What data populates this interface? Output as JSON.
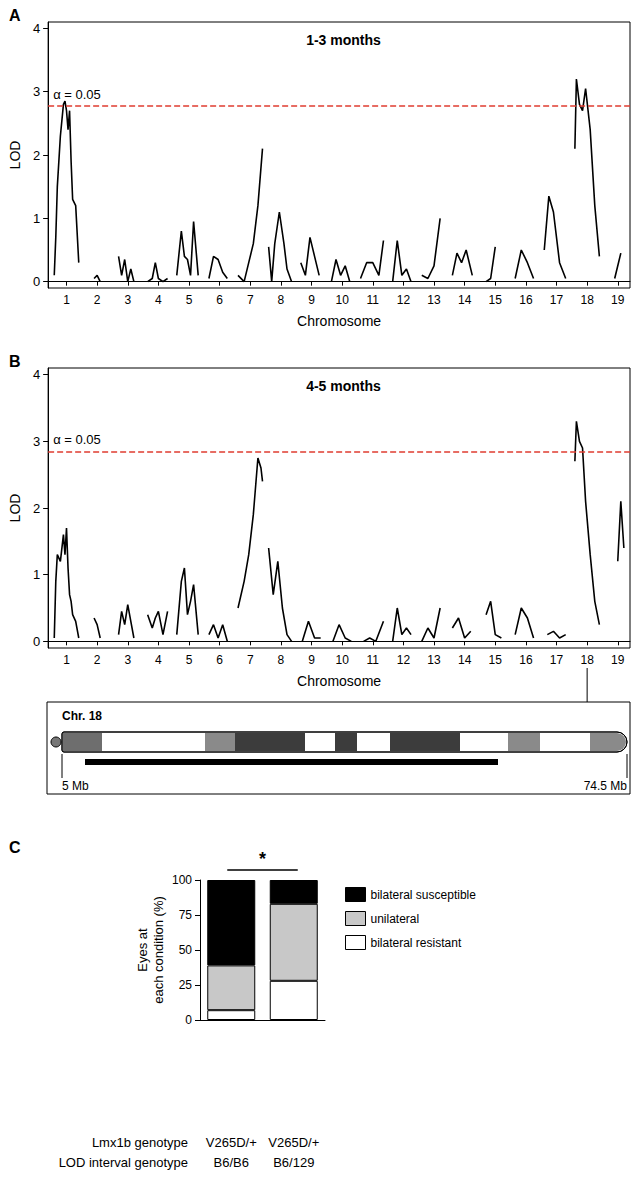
{
  "chart_data": [
    {
      "type": "line",
      "panel": "A",
      "title": "1-3 months",
      "x_label": "Chromosome",
      "y_label": "LOD",
      "color": "#000000",
      "grid": false,
      "xlim": [
        0.4,
        19.4
      ],
      "xticks": [
        1,
        2,
        3,
        4,
        5,
        6,
        7,
        8,
        9,
        10,
        11,
        12,
        13,
        14,
        15,
        16,
        17,
        18,
        19
      ],
      "ylim": [
        -0.1,
        4.1
      ],
      "yticks": [
        0,
        1,
        2,
        3,
        4
      ],
      "threshold": {
        "value": 2.78,
        "label": "α = 0.05",
        "color": "#e03c31",
        "line_style": "dashed"
      },
      "x": [
        0.6,
        0.65,
        0.7,
        0.8,
        0.9,
        0.95,
        1.0,
        1.05,
        1.1,
        1.15,
        1.2,
        1.3,
        1.4,
        1.5,
        1.9,
        2.0,
        2.1,
        2.5,
        2.7,
        2.8,
        2.9,
        3.0,
        3.1,
        3.2,
        3.5,
        3.65,
        3.8,
        3.9,
        4.0,
        4.15,
        4.3,
        4.5,
        4.6,
        4.75,
        4.85,
        4.95,
        5.05,
        5.15,
        5.3,
        5.5,
        5.65,
        5.8,
        5.95,
        6.1,
        6.25,
        6.5,
        6.6,
        6.8,
        6.95,
        7.1,
        7.25,
        7.4,
        7.5,
        7.6,
        7.7,
        7.8,
        7.95,
        8.1,
        8.2,
        8.35,
        8.5,
        8.65,
        8.8,
        8.95,
        9.1,
        9.25,
        9.5,
        9.65,
        9.8,
        9.95,
        10.1,
        10.25,
        10.5,
        10.6,
        10.8,
        11.0,
        11.2,
        11.35,
        11.5,
        11.65,
        11.8,
        11.95,
        12.1,
        12.25,
        12.5,
        12.6,
        12.8,
        13.0,
        13.2,
        13.5,
        13.6,
        13.75,
        13.9,
        14.05,
        14.25,
        14.5,
        14.7,
        14.85,
        15.0,
        15.5,
        15.65,
        15.85,
        16.05,
        16.25,
        16.5,
        16.6,
        16.75,
        16.9,
        17.1,
        17.3,
        17.5,
        17.6,
        17.65,
        17.75,
        17.85,
        17.95,
        18.1,
        18.25,
        18.4,
        18.5,
        18.9,
        19.1
      ],
      "values": [
        0.1,
        0.7,
        1.5,
        2.3,
        2.8,
        2.85,
        2.7,
        2.4,
        2.7,
        1.9,
        1.3,
        1.2,
        0.3,
        null,
        0.05,
        0.1,
        0.0,
        null,
        0.4,
        0.1,
        0.35,
        0.0,
        0.2,
        0.0,
        null,
        0.0,
        0.05,
        0.3,
        0.05,
        0.0,
        0.05,
        null,
        0.1,
        0.8,
        0.4,
        0.35,
        0.1,
        0.95,
        0.1,
        null,
        0.05,
        0.4,
        0.35,
        0.15,
        0.05,
        null,
        0.1,
        0.0,
        0.3,
        0.6,
        1.2,
        2.1,
        null,
        0.55,
        0.0,
        0.6,
        1.1,
        0.6,
        0.2,
        0.0,
        null,
        0.3,
        0.1,
        0.7,
        0.4,
        0.1,
        null,
        0.0,
        0.35,
        0.1,
        0.25,
        0.0,
        null,
        0.05,
        0.3,
        0.3,
        0.1,
        0.65,
        null,
        0.0,
        0.65,
        0.1,
        0.2,
        0.0,
        null,
        0.1,
        0.05,
        0.25,
        1.0,
        null,
        0.1,
        0.45,
        0.3,
        0.5,
        0.1,
        null,
        0.0,
        0.05,
        0.55,
        null,
        0.05,
        0.5,
        0.3,
        0.05,
        null,
        0.5,
        1.35,
        1.1,
        0.3,
        0.05,
        null,
        2.1,
        3.2,
        2.8,
        2.7,
        3.05,
        2.4,
        1.2,
        0.4,
        null,
        0.05,
        0.45
      ]
    },
    {
      "type": "line",
      "panel": "B",
      "title": "4-5 months",
      "x_label": "Chromosome",
      "y_label": "LOD",
      "color": "#000000",
      "grid": false,
      "xlim": [
        0.4,
        19.4
      ],
      "xticks": [
        1,
        2,
        3,
        4,
        5,
        6,
        7,
        8,
        9,
        10,
        11,
        12,
        13,
        14,
        15,
        16,
        17,
        18,
        19
      ],
      "ylim": [
        -0.1,
        4.1
      ],
      "yticks": [
        0,
        1,
        2,
        3,
        4
      ],
      "threshold": {
        "value": 2.85,
        "label": "α = 0.05",
        "color": "#e03c31",
        "line_style": "dashed"
      },
      "x": [
        0.6,
        0.65,
        0.7,
        0.8,
        0.9,
        0.95,
        1.0,
        1.05,
        1.1,
        1.15,
        1.2,
        1.3,
        1.4,
        1.5,
        1.9,
        2.0,
        2.1,
        2.5,
        2.7,
        2.8,
        2.9,
        3.0,
        3.1,
        3.2,
        3.5,
        3.65,
        3.8,
        3.9,
        4.0,
        4.15,
        4.3,
        4.5,
        4.6,
        4.75,
        4.85,
        4.95,
        5.05,
        5.15,
        5.3,
        5.5,
        5.65,
        5.8,
        5.95,
        6.1,
        6.25,
        6.5,
        6.6,
        6.8,
        6.95,
        7.1,
        7.25,
        7.35,
        7.4,
        7.5,
        7.6,
        7.75,
        7.9,
        8.05,
        8.2,
        8.35,
        8.5,
        8.7,
        8.9,
        9.1,
        9.3,
        9.5,
        9.7,
        9.9,
        10.1,
        10.3,
        10.5,
        10.7,
        10.9,
        11.1,
        11.35,
        11.5,
        11.65,
        11.8,
        11.95,
        12.1,
        12.25,
        12.5,
        12.6,
        12.8,
        13.0,
        13.2,
        13.5,
        13.6,
        13.8,
        14.0,
        14.2,
        14.5,
        14.7,
        14.85,
        15.0,
        15.2,
        15.5,
        15.65,
        15.85,
        16.05,
        16.25,
        16.5,
        16.7,
        16.9,
        17.1,
        17.3,
        17.5,
        17.6,
        17.65,
        17.75,
        17.85,
        17.95,
        18.1,
        18.25,
        18.4,
        18.5,
        19.0,
        19.1,
        19.2
      ],
      "values": [
        0.05,
        0.9,
        1.3,
        1.2,
        1.6,
        1.3,
        1.7,
        1.1,
        0.7,
        0.6,
        0.4,
        0.3,
        0.05,
        null,
        0.35,
        0.25,
        0.05,
        null,
        0.1,
        0.45,
        0.25,
        0.55,
        0.3,
        0.05,
        null,
        0.4,
        0.2,
        0.35,
        0.45,
        0.1,
        0.45,
        null,
        0.1,
        0.9,
        1.1,
        0.4,
        0.6,
        0.85,
        0.1,
        null,
        0.1,
        0.25,
        0.05,
        0.25,
        0.0,
        null,
        0.5,
        0.9,
        1.3,
        1.9,
        2.75,
        2.6,
        2.4,
        null,
        1.4,
        0.7,
        1.2,
        0.5,
        0.1,
        0.0,
        null,
        0.0,
        0.3,
        0.05,
        0.05,
        null,
        0.0,
        0.25,
        0.05,
        0.0,
        null,
        0.0,
        0.05,
        0.0,
        0.3,
        null,
        0.0,
        0.5,
        0.1,
        0.2,
        0.1,
        null,
        0.0,
        0.2,
        0.05,
        0.5,
        null,
        0.2,
        0.35,
        0.05,
        0.15,
        null,
        0.4,
        0.6,
        0.1,
        0.05,
        null,
        0.1,
        0.5,
        0.35,
        0.05,
        null,
        0.1,
        0.15,
        0.05,
        0.1,
        null,
        2.7,
        3.3,
        3.0,
        2.9,
        2.1,
        1.3,
        0.6,
        0.25,
        null,
        1.2,
        2.1,
        1.4
      ]
    },
    {
      "type": "bar",
      "panel": "C",
      "stacked": true,
      "legend": "right",
      "grid": false,
      "y_label": "Eyes at\neach condition (%)",
      "categories": [
        [
          "V265D/+",
          "B6/B6"
        ],
        [
          "V265D/+",
          "B6/129"
        ]
      ],
      "category_rows": [
        "Lmx1b genotype",
        "LOD interval genotype"
      ],
      "ylim": [
        0,
        100
      ],
      "yticks": [
        0,
        25,
        50,
        75,
        100
      ],
      "series": [
        {
          "name": "bilateral resistant",
          "color": "#ffffff",
          "values": [
            7,
            28
          ]
        },
        {
          "name": "unilateral",
          "color": "#c8c8c8",
          "values": [
            32,
            55
          ]
        },
        {
          "name": "bilateral susceptible",
          "color": "#000000",
          "values": [
            61,
            17
          ]
        }
      ],
      "annotations": [
        {
          "text": "*",
          "between": [
            0,
            1
          ]
        }
      ]
    }
  ],
  "ideogram": {
    "chromosome": 18,
    "label": "Chr. 18",
    "start_label": "5 Mb",
    "end_label": "74.5 Mb"
  }
}
